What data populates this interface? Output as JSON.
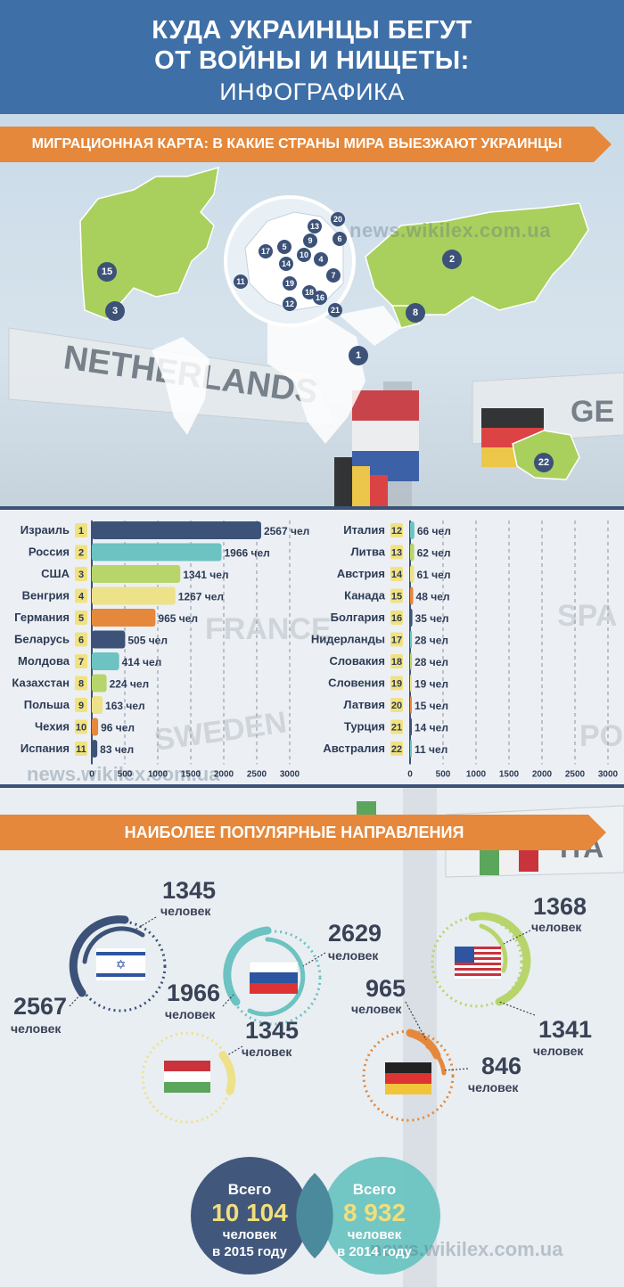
{
  "header": {
    "line1": "КУДА УКРАИНЦЫ БЕГУТ",
    "line2": "ОТ ВОЙНЫ И НИЩЕТЫ:",
    "line3": "ИНФОГРАФИКА"
  },
  "ribbon_map": "МИГРАЦИОННАЯ КАРТА: В КАКИЕ СТРАНЫ МИРА ВЫЕЗЖАЮТ УКРАИНЦЫ",
  "ribbon_popular": "НАИБОЛЕЕ ПОПУЛЯРНЫЕ НАПРАВЛЕНИЯ",
  "watermark": "news.wikilex.com.ua",
  "signs": {
    "netherlands": "NETHERLANDS",
    "ge": "GE",
    "sweden": "SWEDEN",
    "france": "FRANCE",
    "spa": "SPA",
    "ita": "ITA",
    "po": "PO"
  },
  "map_markers": [
    "1",
    "2",
    "3",
    "6",
    "8",
    "11",
    "15",
    "22",
    "4",
    "5",
    "7",
    "9",
    "10",
    "12",
    "13",
    "14",
    "16",
    "17",
    "18",
    "19",
    "20",
    "21"
  ],
  "colors": {
    "navy": "#3c5278",
    "teal": "#6cc3c1",
    "lime": "#b7d56b",
    "yellow": "#ede18a",
    "orange": "#e5883b",
    "header_blue": "#3f6fa7",
    "land": "#a9cf5d"
  },
  "chart_data": [
    {
      "type": "bar",
      "orientation": "horizontal",
      "categories": [
        "Израиль",
        "Россия",
        "США",
        "Венгрия",
        "Германия",
        "Беларусь",
        "Молдова",
        "Казахстан",
        "Польша",
        "Чехия",
        "Испания"
      ],
      "ranks": [
        "1",
        "2",
        "3",
        "4",
        "5",
        "6",
        "7",
        "8",
        "9",
        "10",
        "11"
      ],
      "values": [
        2567,
        1966,
        1341,
        1267,
        965,
        505,
        414,
        224,
        163,
        96,
        83
      ],
      "value_labels": [
        "2567 чел",
        "1966 чел",
        "1341 чел",
        "1267 чел",
        "965 чел",
        "505 чел",
        "414 чел",
        "224 чел",
        "163 чел",
        "96 чел",
        "83 чел"
      ],
      "bar_colors": [
        "#3c5278",
        "#6cc3c1",
        "#b7d56b",
        "#ede18a",
        "#e5883b",
        "#3c5278",
        "#6cc3c1",
        "#b7d56b",
        "#ede18a",
        "#e5883b",
        "#3c5278"
      ],
      "xlim": [
        0,
        3000
      ],
      "xticks": [
        "0",
        "500",
        "1000",
        "1500",
        "2000",
        "2500",
        "3000"
      ]
    },
    {
      "type": "bar",
      "orientation": "horizontal",
      "categories": [
        "Италия",
        "Литва",
        "Австрия",
        "Канада",
        "Болгария",
        "Нидерланды",
        "Словакия",
        "Словения",
        "Латвия",
        "Турция",
        "Австралия"
      ],
      "ranks": [
        "12",
        "13",
        "14",
        "15",
        "16",
        "17",
        "18",
        "19",
        "20",
        "21",
        "22"
      ],
      "values": [
        66,
        62,
        61,
        48,
        35,
        28,
        28,
        19,
        15,
        14,
        11
      ],
      "value_labels": [
        "66 чел",
        "62 чел",
        "61 чел",
        "48 чел",
        "35 чел",
        "28 чел",
        "28 чел",
        "19 чел",
        "15 чел",
        "14 чел",
        "11 чел"
      ],
      "bar_colors": [
        "#6cc3c1",
        "#b7d56b",
        "#ede18a",
        "#e5883b",
        "#3c5278",
        "#6cc3c1",
        "#b7d56b",
        "#ede18a",
        "#e5883b",
        "#3c5278",
        "#6cc3c1"
      ],
      "xlim": [
        0,
        3000
      ],
      "xticks": [
        "0",
        "500",
        "1000",
        "1500",
        "2000",
        "2500",
        "3000"
      ]
    }
  ],
  "popular": {
    "israel": {
      "top": "1345",
      "bottom": "2567"
    },
    "russia": {
      "top": "2629",
      "bottom": "1966"
    },
    "usa": {
      "top": "1368",
      "bottom": "1341"
    },
    "hungary": {
      "top": "1345"
    },
    "germany": {
      "top": "965",
      "bottom": "846"
    },
    "unit": "человек"
  },
  "totals": {
    "y2015": {
      "top": "Всего",
      "num": "10 104",
      "l1": "человек",
      "l2": "в 2015 году"
    },
    "y2014": {
      "top": "Всего",
      "num": "8 932",
      "l1": "человек",
      "l2": "в 2014 году"
    }
  }
}
